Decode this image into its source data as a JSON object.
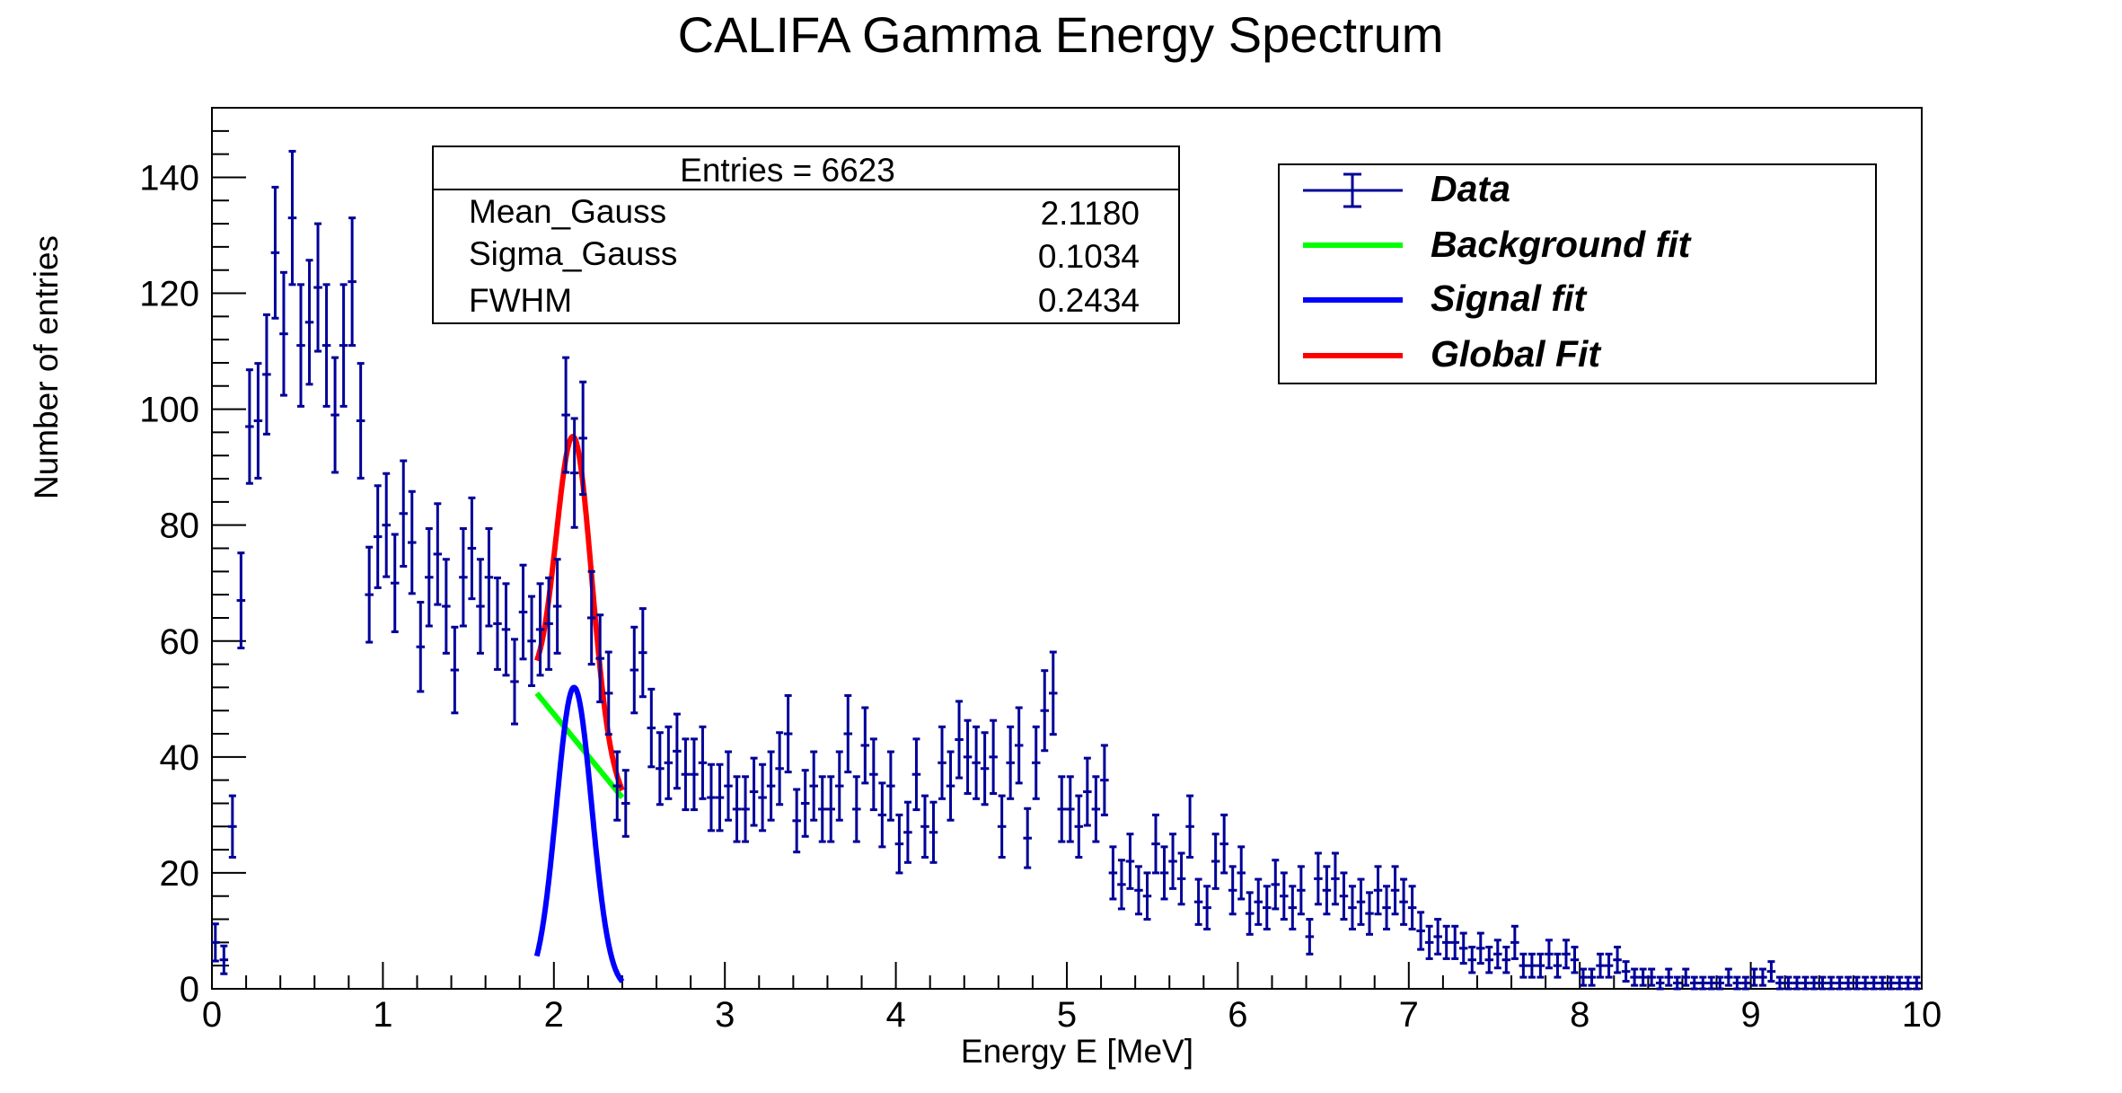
{
  "chart_data": {
    "type": "scatter",
    "title": "CALIFA Gamma Energy Spectrum",
    "xlabel": "Energy E [MeV]",
    "ylabel": "Number of entries",
    "xlim": [
      0,
      10
    ],
    "ylim": [
      0,
      152
    ],
    "xticks": [
      0,
      1,
      2,
      3,
      4,
      5,
      6,
      7,
      8,
      9,
      10
    ],
    "yticks": [
      0,
      20,
      40,
      60,
      80,
      100,
      120,
      140
    ],
    "grid": false,
    "legend_position": "top-right",
    "stats": {
      "header": "Entries = 6623",
      "rows": [
        {
          "name": "Mean_Gauss",
          "value": "2.1180"
        },
        {
          "name": "Sigma_Gauss",
          "value": "0.1034"
        },
        {
          "name": "FWHM",
          "value": "0.2434"
        }
      ]
    },
    "legend": [
      {
        "label": "Data",
        "color": "#000099",
        "style": "errorbar"
      },
      {
        "label": "Background fit",
        "color": "#00ff00",
        "style": "line"
      },
      {
        "label": "Signal fit",
        "color": "#0000ff",
        "style": "line"
      },
      {
        "label": "Global Fit",
        "color": "#ff0000",
        "style": "line"
      }
    ],
    "data_points": {
      "name": "Data",
      "color": "#000099",
      "x": [
        0.02,
        0.07,
        0.12,
        0.17,
        0.22,
        0.27,
        0.32,
        0.37,
        0.42,
        0.47,
        0.52,
        0.57,
        0.62,
        0.67,
        0.72,
        0.77,
        0.82,
        0.87,
        0.92,
        0.97,
        1.02,
        1.07,
        1.12,
        1.17,
        1.22,
        1.27,
        1.32,
        1.37,
        1.42,
        1.47,
        1.52,
        1.57,
        1.62,
        1.67,
        1.72,
        1.77,
        1.82,
        1.87,
        1.92,
        1.97,
        2.02,
        2.07,
        2.12,
        2.17,
        2.22,
        2.27,
        2.32,
        2.37,
        2.42,
        2.47,
        2.52,
        2.57,
        2.62,
        2.67,
        2.72,
        2.77,
        2.82,
        2.87,
        2.92,
        2.97,
        3.02,
        3.07,
        3.12,
        3.17,
        3.22,
        3.27,
        3.32,
        3.37,
        3.42,
        3.47,
        3.52,
        3.57,
        3.62,
        3.67,
        3.72,
        3.77,
        3.82,
        3.87,
        3.92,
        3.97,
        4.02,
        4.07,
        4.12,
        4.17,
        4.22,
        4.27,
        4.32,
        4.37,
        4.42,
        4.47,
        4.52,
        4.57,
        4.62,
        4.67,
        4.72,
        4.77,
        4.82,
        4.87,
        4.92,
        4.97,
        5.02,
        5.07,
        5.12,
        5.17,
        5.22,
        5.27,
        5.32,
        5.37,
        5.42,
        5.47,
        5.52,
        5.57,
        5.62,
        5.67,
        5.72,
        5.77,
        5.82,
        5.87,
        5.92,
        5.97,
        6.02,
        6.07,
        6.12,
        6.17,
        6.22,
        6.27,
        6.32,
        6.37,
        6.42,
        6.47,
        6.52,
        6.57,
        6.62,
        6.67,
        6.72,
        6.77,
        6.82,
        6.87,
        6.92,
        6.97,
        7.02,
        7.07,
        7.12,
        7.17,
        7.22,
        7.27,
        7.32,
        7.37,
        7.42,
        7.47,
        7.52,
        7.57,
        7.62,
        7.67,
        7.72,
        7.77,
        7.82,
        7.87,
        7.92,
        7.97,
        8.02,
        8.07,
        8.12,
        8.17,
        8.22,
        8.27,
        8.32,
        8.37,
        8.42,
        8.47,
        8.52,
        8.57,
        8.62,
        8.67,
        8.72,
        8.77,
        8.82,
        8.87,
        8.92,
        8.97,
        9.02,
        9.07,
        9.12,
        9.17,
        9.22,
        9.27,
        9.32,
        9.37,
        9.42,
        9.47,
        9.52,
        9.57,
        9.62,
        9.67,
        9.72,
        9.77,
        9.82,
        9.87,
        9.92,
        9.97
      ],
      "y": [
        8,
        5,
        28,
        67,
        97,
        98,
        106,
        127,
        113,
        133,
        111,
        115,
        121,
        111,
        99,
        111,
        122,
        98,
        68,
        78,
        80,
        70,
        82,
        77,
        59,
        71,
        75,
        66,
        55,
        71,
        76,
        66,
        71,
        63,
        62,
        53,
        65,
        60,
        62,
        63,
        66,
        99,
        89,
        95,
        64,
        57,
        51,
        35,
        32,
        55,
        58,
        45,
        38,
        39,
        41,
        37,
        37,
        39,
        33,
        33,
        35,
        31,
        31,
        34,
        33,
        35,
        38,
        44,
        29,
        32,
        35,
        31,
        31,
        35,
        44,
        31,
        42,
        37,
        30,
        35,
        25,
        27,
        37,
        28,
        27,
        39,
        35,
        43,
        40,
        39,
        38,
        40,
        28,
        39,
        42,
        26,
        39,
        48,
        51,
        31,
        31,
        28,
        34,
        31,
        36,
        20,
        18,
        22,
        17,
        16,
        25,
        20,
        22,
        19,
        28,
        15,
        14,
        22,
        25,
        17,
        20,
        13,
        15,
        14,
        18,
        16,
        14,
        17,
        9,
        19,
        17,
        19,
        16,
        14,
        15,
        13,
        17,
        14,
        17,
        15,
        14,
        10,
        8,
        9,
        8,
        8,
        7,
        5,
        7,
        5,
        6,
        5,
        8,
        4,
        4,
        4,
        6,
        4,
        6,
        5,
        2,
        2,
        4,
        4,
        5,
        3,
        2,
        2,
        2,
        1,
        2,
        1,
        2,
        1,
        1,
        1,
        1,
        2,
        1,
        1,
        2,
        2,
        3,
        1,
        1,
        1,
        1,
        1,
        1,
        1,
        1,
        1,
        1,
        1,
        1,
        1,
        1,
        1,
        1,
        1
      ],
      "errors": [
        3.2,
        2.4,
        5.3,
        8.2,
        9.8,
        9.9,
        10.3,
        11.3,
        10.6,
        11.5,
        10.5,
        10.7,
        11.0,
        10.5,
        9.9,
        10.5,
        11.0,
        9.9,
        8.2,
        8.8,
        8.9,
        8.4,
        9.1,
        8.8,
        7.7,
        8.4,
        8.7,
        8.1,
        7.4,
        8.4,
        8.7,
        8.1,
        8.4,
        7.9,
        7.9,
        7.3,
        8.1,
        7.7,
        7.9,
        7.9,
        8.1,
        9.9,
        9.4,
        9.7,
        8.0,
        7.5,
        7.1,
        5.9,
        5.7,
        7.4,
        7.6,
        6.7,
        6.2,
        6.2,
        6.4,
        6.1,
        6.1,
        6.2,
        5.7,
        5.7,
        5.9,
        5.6,
        5.6,
        5.8,
        5.7,
        5.9,
        6.2,
        6.6,
        5.4,
        5.7,
        5.9,
        5.6,
        5.6,
        5.9,
        6.6,
        5.6,
        6.5,
        6.1,
        5.5,
        5.9,
        5.0,
        5.2,
        6.1,
        5.3,
        5.2,
        6.2,
        5.9,
        6.6,
        6.3,
        6.2,
        6.2,
        6.3,
        5.3,
        6.2,
        6.5,
        5.1,
        6.2,
        6.9,
        7.1,
        5.6,
        5.6,
        5.3,
        5.8,
        5.6,
        6.0,
        4.5,
        4.2,
        4.7,
        4.1,
        4.0,
        5.0,
        4.5,
        4.7,
        4.4,
        5.3,
        3.9,
        3.7,
        4.7,
        5.0,
        4.1,
        4.5,
        3.6,
        3.9,
        3.7,
        4.2,
        4.0,
        3.7,
        4.1,
        3.0,
        4.4,
        4.1,
        4.4,
        4.0,
        3.7,
        3.9,
        3.6,
        4.1,
        3.7,
        4.1,
        3.9,
        3.7,
        3.2,
        2.8,
        3.0,
        2.8,
        2.8,
        2.6,
        2.2,
        2.6,
        2.2,
        2.4,
        2.2,
        2.8,
        2.0,
        2.0,
        2.0,
        2.4,
        2.0,
        2.4,
        2.2,
        1.4,
        1.4,
        2.0,
        2.0,
        2.2,
        1.7,
        1.4,
        1.4,
        1.4,
        1.0,
        1.4,
        1.0,
        1.4,
        1.0,
        1.0,
        1.0,
        1.0,
        1.4,
        1.0,
        1.0,
        1.4,
        1.4,
        1.7,
        1.0,
        1.0,
        1.0,
        1.0,
        1.0,
        1.0,
        1.0,
        1.0,
        1.0,
        1.0,
        1.0,
        1.0,
        1.0,
        1.0,
        1.0,
        1.0,
        1.0
      ]
    },
    "fits": {
      "background": {
        "color": "#00ff00",
        "x_range": [
          1.9,
          2.4
        ],
        "y_start": 51,
        "y_end": 33
      },
      "signal": {
        "color": "#0000ff",
        "mean": 2.118,
        "sigma": 0.1034,
        "amplitude": 52,
        "x_range": [
          1.9,
          2.4
        ]
      },
      "global": {
        "color": "#ff0000",
        "x_range": [
          1.9,
          2.4
        ]
      }
    }
  }
}
